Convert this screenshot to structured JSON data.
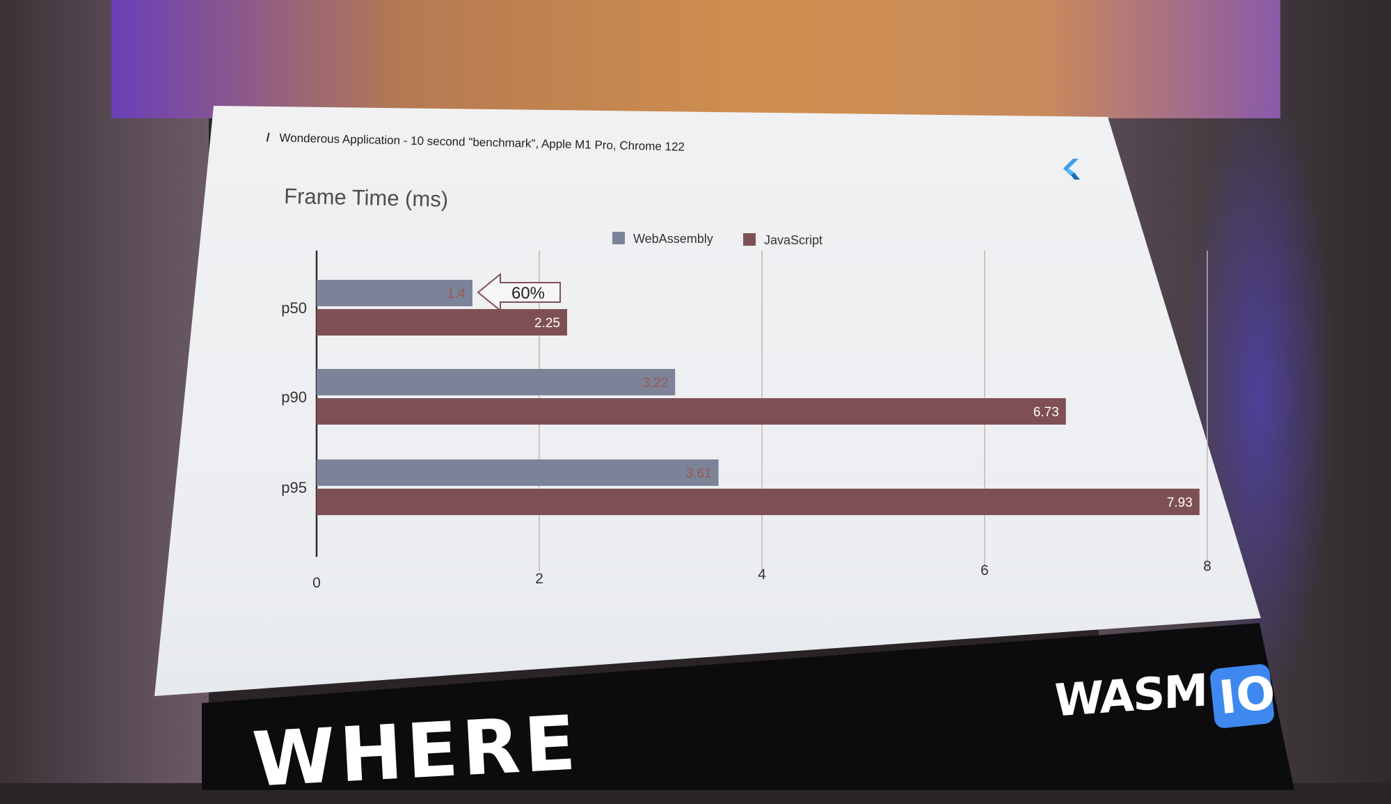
{
  "slide": {
    "header_text": "Wonderous Application - 10 second \"benchmark\", Apple M1 Pro, Chrome 122"
  },
  "banner": {
    "logo_text": "WASM",
    "logo_badge": "IO",
    "backdrop_text": "WHERE"
  },
  "chart_data": {
    "type": "bar",
    "orientation": "horizontal",
    "title": "Frame Time (ms)",
    "xlabel": "",
    "ylabel": "",
    "categories": [
      "p50",
      "p90",
      "p95"
    ],
    "series": [
      {
        "name": "WebAssembly",
        "values": [
          1.4,
          3.22,
          3.61
        ]
      },
      {
        "name": "JavaScript",
        "values": [
          2.25,
          6.73,
          7.93
        ]
      }
    ],
    "xlim": [
      0,
      8
    ],
    "xticks": [
      0,
      2,
      4,
      6,
      8
    ],
    "grid": true,
    "legend": "top-center",
    "annotation": {
      "text": "60%",
      "category": "p50"
    }
  },
  "colors": {
    "webassembly": "#7c8399",
    "javascript": "#7e5055",
    "wasm_label": "#9a5a4a",
    "js_label": "#ffffff",
    "flutter_blue": "#3f9ee8",
    "wasm_io_blue": "#3f88f0"
  },
  "icons": {
    "slide_logo": "flutter-logo-icon",
    "callout": "left-arrow-callout-icon"
  }
}
